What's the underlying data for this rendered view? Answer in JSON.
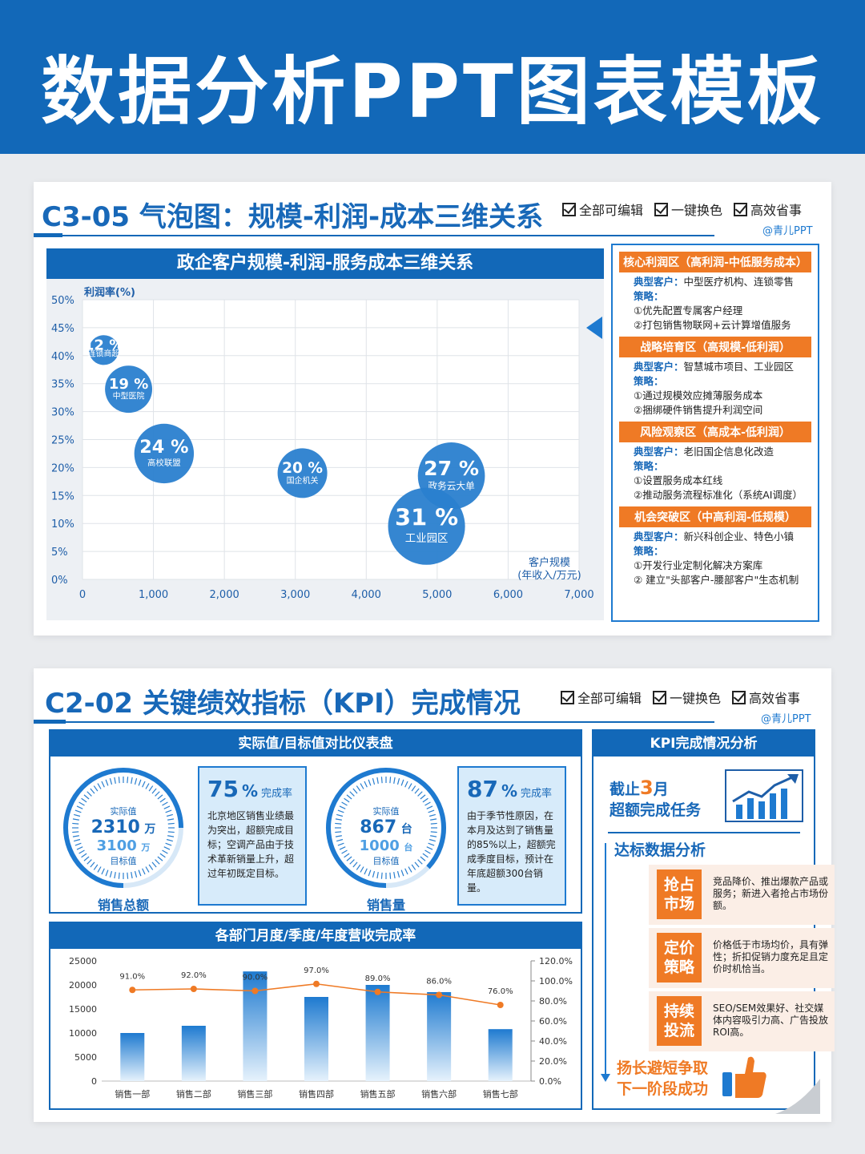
{
  "banner": {
    "title": "数据分析PPT图表模板"
  },
  "features": [
    "全部可编辑",
    "一键换色",
    "高效省事"
  ],
  "brand": "@青儿PPT",
  "section1": {
    "title": "C3-05 气泡图：规模-利润-成本三维关系",
    "chart_title": "政企客户规模-利润-服务成本三维关系",
    "zones": [
      {
        "title": "核心利润区（高利润-中低服务成本）",
        "customers_label": "典型客户：",
        "customers": "中型医疗机构、连锁零售",
        "strategy_label": "策略：",
        "lines": [
          "①优先配置专属客户经理",
          "②打包销售物联网+云计算增值服务"
        ]
      },
      {
        "title": "战略培育区（高规模-低利润）",
        "customers_label": "典型客户：",
        "customers": "智慧城市项目、工业园区",
        "strategy_label": "策略：",
        "lines": [
          "①通过规模效应摊薄服务成本",
          "②捆绑硬件销售提升利润空间"
        ]
      },
      {
        "title": "风险观察区（高成本-低利润）",
        "customers_label": "典型客户：",
        "customers": "老旧国企信息化改造",
        "strategy_label": "策略：",
        "lines": [
          "①设置服务成本红线",
          "②推动服务流程标准化（系统AI调度）"
        ]
      },
      {
        "title": "机会突破区（中高利润-低规模）",
        "customers_label": "典型客户：",
        "customers": "新兴科创企业、特色小镇",
        "strategy_label": "策略：",
        "lines": [
          "①开发行业定制化解决方案库",
          "② 建立\"头部客户-腰部客户\"生态机制"
        ]
      }
    ]
  },
  "chart_data": [
    {
      "type": "scatter",
      "title": "政企客户规模-利润-服务成本三维关系",
      "xlabel": "客户规模\n(年收入/万元)",
      "ylabel": "利润率(%)",
      "xlim": [
        0,
        7000
      ],
      "ylim": [
        0,
        50
      ],
      "x_ticks": [
        "0",
        "1,000",
        "2,000",
        "3,000",
        "4,000",
        "5,000",
        "6,000",
        "7,000"
      ],
      "y_ticks": [
        "0%",
        "5%",
        "10%",
        "15%",
        "20%",
        "25%",
        "30%",
        "35%",
        "40%",
        "45%",
        "50%"
      ],
      "grid": true,
      "points": [
        {
          "name": "连锁商超",
          "x": 300,
          "y": 41,
          "size": 12,
          "label": "12 %"
        },
        {
          "name": "中型医院",
          "x": 650,
          "y": 34,
          "size": 19,
          "label": "19 %"
        },
        {
          "name": "高校联盟",
          "x": 1150,
          "y": 22.5,
          "size": 24,
          "label": "24 %"
        },
        {
          "name": "国企机关",
          "x": 3100,
          "y": 19,
          "size": 20,
          "label": "20 %"
        },
        {
          "name": "政务云大单",
          "x": 5200,
          "y": 18.5,
          "size": 27,
          "label": "27 %"
        },
        {
          "name": "工业园区",
          "x": 4850,
          "y": 9.5,
          "size": 31,
          "label": "31 %"
        }
      ]
    },
    {
      "type": "bar",
      "title": "各部门月度/季度/年度营收完成率",
      "categories": [
        "销售一部",
        "销售二部",
        "销售三部",
        "销售四部",
        "销售五部",
        "销售六部",
        "销售七部"
      ],
      "series": [
        {
          "values": [
            10000,
            11500,
            22800,
            17500,
            20000,
            18500,
            10800
          ]
        },
        {
          "values": [
            91.0,
            92.0,
            90.0,
            97.0,
            89.0,
            86.0,
            76.0
          ],
          "labels": [
            "91.0%",
            "92.0%",
            "90.0%",
            "97.0%",
            "89.0%",
            "86.0%",
            "76.0%"
          ]
        }
      ],
      "ylim": [
        0,
        25000
      ],
      "y_ticks": [
        "0",
        "5000",
        "10000",
        "15000",
        "20000",
        "25000"
      ],
      "y2lim": [
        0,
        120
      ],
      "y2_ticks": [
        "0.0%",
        "20.0%",
        "40.0%",
        "60.0%",
        "80.0%",
        "100.0%",
        "120.0%"
      ]
    }
  ],
  "section2": {
    "title": "C2-02 关键绩效指标（KPI）完成情况",
    "gauge_panel_title": "实际值/目标值对比仪表盘",
    "gauges": [
      {
        "actual_label": "实际值",
        "actual": "2310",
        "actual_unit": "万",
        "target": "3100",
        "target_unit": "万",
        "target_label": "目标值",
        "caption": "销售总额",
        "rate": "75",
        "rate_unit": "%",
        "rate_label": "完成率",
        "note": "北京地区销售业绩最为突出，超额完成目标；空调产品由于技术革新销量上升，超过年初既定目标。",
        "progress": 0.75
      },
      {
        "actual_label": "实际值",
        "actual": "867",
        "actual_unit": "台",
        "target": "1000",
        "target_unit": "台",
        "target_label": "目标值",
        "caption": "销售量",
        "rate": "87",
        "rate_unit": "%",
        "rate_label": "完成率",
        "note": "由于季节性原因，在本月及达到了销售量的85%以上，超额完成季度目标，预计在年底超额300台销量。",
        "progress": 0.87
      }
    ],
    "bar_panel_title": "各部门月度/季度/年度营收完成率",
    "side": {
      "title": "KPI完成情况分析",
      "headline_1a": "截止",
      "headline_1b": "3",
      "headline_1c": "月",
      "headline_2": "超额完成任务",
      "subtitle": "达标数据分析",
      "items": [
        {
          "badge_1": "抢占",
          "badge_2": "市场",
          "text": "竞品降价、推出爆款产品或服务；新进入者抢占市场份额。"
        },
        {
          "badge_1": "定价",
          "badge_2": "策略",
          "text": "价格低于市场均价，具有弹性；折扣促销力度充足且定价时机恰当。"
        },
        {
          "badge_1": "持续",
          "badge_2": "投流",
          "text": "SEO/SEM效果好、社交媒体内容吸引力高、广告投放ROI高。"
        }
      ],
      "footer_1": "扬长避短争取",
      "footer_2": "下一阶段成功"
    }
  }
}
